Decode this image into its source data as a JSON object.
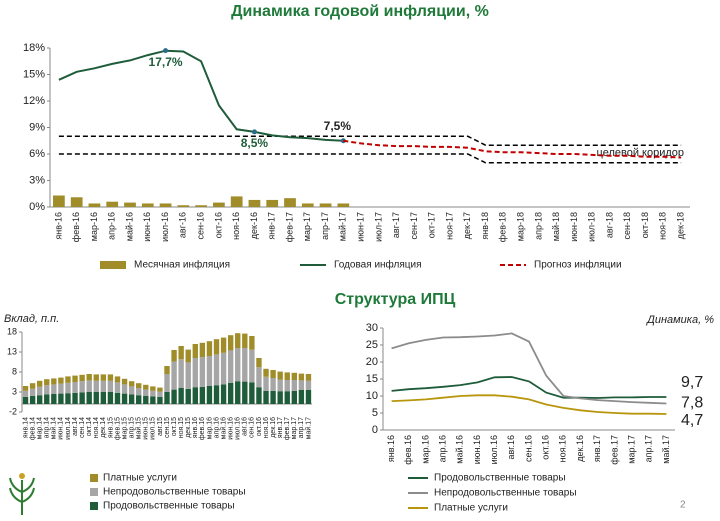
{
  "section_title": "Структура ИПЦ",
  "page_number": "2",
  "chart_data": [
    {
      "type": "combo",
      "title": "Динамика годовой  инфляции, %",
      "categories": [
        "янв-16",
        "фев-16",
        "мар-16",
        "апр-16",
        "май-16",
        "июн-16",
        "июл-16",
        "авг-16",
        "сен-16",
        "окт-16",
        "ноя-16",
        "дек-16",
        "янв-17",
        "фев-17",
        "мар-17",
        "апр-17",
        "май-17",
        "июн-17",
        "июл-17",
        "авг-17",
        "сен-17",
        "окт-17",
        "ноя-17",
        "дек-17",
        "янв-18",
        "фев-18",
        "мар-18",
        "апр-18",
        "май-18",
        "июн-18",
        "июл-18",
        "авг-18",
        "сен-18",
        "окт-18",
        "ноя-18",
        "дек-18"
      ],
      "ylim": [
        0,
        18
      ],
      "yticks": [
        {
          "value": 0,
          "label": "0%"
        },
        {
          "value": 3,
          "label": "3%"
        },
        {
          "value": 6,
          "label": "6%"
        },
        {
          "value": 9,
          "label": "9%"
        },
        {
          "value": 12,
          "label": "12%"
        },
        {
          "value": 15,
          "label": "15%"
        },
        {
          "value": 18,
          "label": "18%"
        }
      ],
      "series": [
        {
          "name": "Месячная инфляция",
          "type": "bar",
          "color": "#a08c28",
          "values": [
            1.3,
            1.1,
            0.4,
            0.6,
            0.5,
            0.4,
            0.4,
            0.2,
            0.2,
            0.5,
            1.2,
            0.8,
            0.8,
            1.0,
            0.4,
            0.4,
            0.4,
            null,
            null,
            null,
            null,
            null,
            null,
            null,
            null,
            null,
            null,
            null,
            null,
            null,
            null,
            null,
            null,
            null,
            null,
            null
          ]
        },
        {
          "name": "Годовая инфляция",
          "type": "line",
          "color": "#1f5c3a",
          "values": [
            14.4,
            15.3,
            15.7,
            16.2,
            16.6,
            17.2,
            17.7,
            17.6,
            16.5,
            11.5,
            8.8,
            8.5,
            8.1,
            7.9,
            7.8,
            7.6,
            7.5,
            null,
            null,
            null,
            null,
            null,
            null,
            null,
            null,
            null,
            null,
            null,
            null,
            null,
            null,
            null,
            null,
            null,
            null,
            null
          ],
          "value_labels": [
            null,
            null,
            null,
            null,
            null,
            null,
            "17,7%",
            null,
            null,
            null,
            null,
            "8,5%",
            null,
            null,
            null,
            null,
            "7,5%",
            null,
            null,
            null,
            null,
            null,
            null,
            null,
            null,
            null,
            null,
            null,
            null,
            null,
            null,
            null,
            null,
            null,
            null,
            null
          ]
        },
        {
          "name": "Прогноз инфляции",
          "type": "line",
          "dashed": true,
          "color": "#c00000",
          "values": [
            null,
            null,
            null,
            null,
            null,
            null,
            null,
            null,
            null,
            null,
            null,
            null,
            null,
            null,
            null,
            null,
            7.5,
            7.2,
            7.0,
            6.9,
            6.9,
            6.8,
            6.8,
            6.7,
            6.3,
            6.2,
            6.2,
            6.1,
            6.0,
            6.0,
            5.9,
            5.8,
            5.8,
            5.7,
            5.7,
            5.6
          ]
        }
      ],
      "corridor": {
        "label": "целевой коридор",
        "color": "#000000",
        "upper": [
          8,
          8,
          8,
          8,
          8,
          8,
          8,
          8,
          8,
          8,
          8,
          8,
          8,
          8,
          8,
          8,
          8,
          8,
          8,
          8,
          8,
          8,
          8,
          8,
          7,
          7,
          7,
          7,
          7,
          7,
          7,
          7,
          7,
          7,
          7,
          7
        ],
        "lower": [
          6,
          6,
          6,
          6,
          6,
          6,
          6,
          6,
          6,
          6,
          6,
          6,
          6,
          6,
          6,
          6,
          6,
          6,
          6,
          6,
          6,
          6,
          6,
          6,
          5,
          5,
          5,
          5,
          5,
          5,
          5,
          5,
          5,
          5,
          5,
          5
        ]
      }
    },
    {
      "type": "stacked_bar",
      "title": "Вклад, п.п.",
      "categories": [
        "янв.14",
        "фев.14",
        "мар.14",
        "апр.14",
        "май.14",
        "июн.14",
        "июл.14",
        "авг.14",
        "сен.14",
        "окт.14",
        "ноя.14",
        "дек.14",
        "янв.15",
        "фев.15",
        "мар.15",
        "апр.15",
        "май.15",
        "июн.15",
        "июл.15",
        "авг.15",
        "сен.15",
        "окт.15",
        "ноя.15",
        "дек.15",
        "янв.16",
        "фев.16",
        "мар.16",
        "апр.16",
        "май.16",
        "июн.16",
        "июл.16",
        "авг.16",
        "сен.16",
        "окт.16",
        "ноя.16",
        "дек.16",
        "янв.17",
        "фев.17",
        "мар.17",
        "апр.17",
        "май.17"
      ],
      "ylim": [
        -2,
        18
      ],
      "yticks": [
        -2,
        3,
        8,
        13,
        18
      ],
      "series": [
        {
          "name": "Продовольственные товары",
          "color": "#1f5c3a",
          "values": [
            1.8,
            2.0,
            2.2,
            2.4,
            2.5,
            2.6,
            2.7,
            2.8,
            2.9,
            3.0,
            3.0,
            3.0,
            3.0,
            2.8,
            2.6,
            2.4,
            2.2,
            2.0,
            1.9,
            1.8,
            3.0,
            3.6,
            4.0,
            3.8,
            4.2,
            4.3,
            4.5,
            4.7,
            4.9,
            5.3,
            5.7,
            5.6,
            5.4,
            4.2,
            3.3,
            3.3,
            3.2,
            3.2,
            3.3,
            3.5,
            3.5
          ]
        },
        {
          "name": "Непродовольственные товары",
          "color": "#a6a6a6",
          "values": [
            1.5,
            1.8,
            2.1,
            2.3,
            2.4,
            2.5,
            2.6,
            2.7,
            2.8,
            2.9,
            2.8,
            2.8,
            2.8,
            2.6,
            2.3,
            2.0,
            1.8,
            1.6,
            1.4,
            1.3,
            4.5,
            7.0,
            7.2,
            6.6,
            7.3,
            7.4,
            7.5,
            7.7,
            7.9,
            8.1,
            8.3,
            8.4,
            8.2,
            5.0,
            3.5,
            3.2,
            2.9,
            2.8,
            2.7,
            2.4,
            2.3
          ]
        },
        {
          "name": "Платные услуги",
          "color": "#a08c28",
          "values": [
            1.2,
            1.4,
            1.5,
            1.5,
            1.5,
            1.5,
            1.6,
            1.6,
            1.6,
            1.6,
            1.6,
            1.6,
            1.6,
            1.5,
            1.4,
            1.3,
            1.2,
            1.2,
            1.1,
            1.0,
            2.0,
            2.9,
            3.3,
            3.2,
            3.5,
            3.6,
            3.7,
            3.8,
            3.8,
            3.8,
            3.7,
            3.6,
            3.4,
            2.3,
            2.0,
            2.0,
            2.0,
            1.9,
            1.8,
            1.7,
            1.7
          ]
        }
      ]
    },
    {
      "type": "line",
      "title": "Динамика, %",
      "categories": [
        "янв.16",
        "фев.16",
        "мар.16",
        "апр.16",
        "май.16",
        "июн.16",
        "июл.16",
        "авг.16",
        "сен.16",
        "окт.16",
        "ноя.16",
        "дек.16",
        "янв.17",
        "фев.17",
        "мар.17",
        "апр.17",
        "май.17"
      ],
      "ylim": [
        0,
        30
      ],
      "yticks": [
        0,
        5,
        10,
        15,
        20,
        25,
        30
      ],
      "series": [
        {
          "name": "Продовольственные товары",
          "color": "#1f5c3a",
          "values": [
            11.5,
            12.0,
            12.3,
            12.7,
            13.2,
            14.0,
            15.5,
            15.6,
            14.3,
            11.0,
            9.5,
            9.5,
            9.4,
            9.6,
            9.6,
            9.7,
            9.7
          ],
          "value_labels": [
            null,
            null,
            null,
            null,
            null,
            null,
            null,
            null,
            null,
            null,
            null,
            null,
            null,
            null,
            null,
            null,
            "9,7"
          ]
        },
        {
          "name": "Непродовольственные товары",
          "color": "#8c8c8c",
          "values": [
            24.0,
            25.5,
            26.5,
            27.2,
            27.3,
            27.5,
            27.8,
            28.4,
            26.0,
            16.0,
            10.0,
            9.3,
            8.8,
            8.5,
            8.2,
            8.0,
            7.8
          ],
          "value_labels": [
            null,
            null,
            null,
            null,
            null,
            null,
            null,
            null,
            null,
            null,
            null,
            null,
            null,
            null,
            null,
            null,
            "7,8"
          ]
        },
        {
          "name": "Платные услуги",
          "color": "#b8960c",
          "values": [
            8.5,
            8.7,
            9.0,
            9.5,
            10.0,
            10.2,
            10.2,
            9.8,
            9.0,
            7.5,
            6.5,
            5.8,
            5.3,
            5.0,
            4.8,
            4.8,
            4.7
          ],
          "value_labels": [
            null,
            null,
            null,
            null,
            null,
            null,
            null,
            null,
            null,
            null,
            null,
            null,
            null,
            null,
            null,
            null,
            "4,7"
          ]
        }
      ]
    }
  ]
}
